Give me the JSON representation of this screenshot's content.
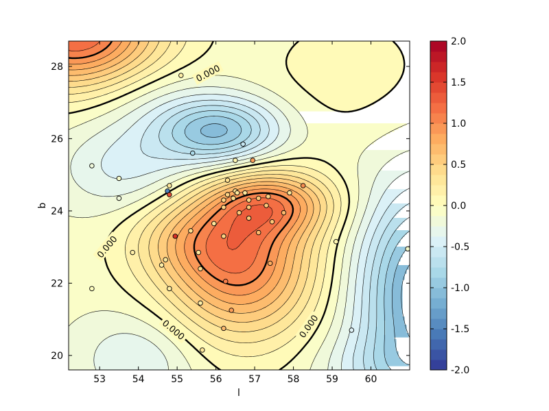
{
  "chart_data": {
    "type": "contour",
    "title": "",
    "xlabel": "l",
    "ylabel": "b",
    "xlim": [
      52.2,
      61.0
    ],
    "ylim": [
      19.6,
      28.7
    ],
    "x_ticks": [
      53,
      54,
      55,
      56,
      57,
      58,
      59,
      60
    ],
    "y_ticks": [
      20,
      22,
      24,
      26,
      28
    ],
    "colorbar": {
      "min": -2.0,
      "max": 2.0,
      "ticks": [
        "-2.0",
        "-1.5",
        "-1.0",
        "-0.5",
        "0.0",
        "0.5",
        "1.0",
        "1.5",
        "2.0"
      ],
      "colormap": "RdYlBu_r"
    },
    "contour_labels": [
      {
        "text": "0.000",
        "l": 55.8,
        "b": 27.8
      },
      {
        "text": "0.000",
        "l": 53.2,
        "b": 23.0
      },
      {
        "text": "0.000",
        "l": 54.9,
        "b": 20.7
      },
      {
        "text": "0.000",
        "l": 58.4,
        "b": 20.8
      }
    ],
    "points": [
      {
        "l": 55.1,
        "b": 27.75,
        "v": 0.2
      },
      {
        "l": 52.8,
        "b": 25.25,
        "v": -0.2
      },
      {
        "l": 53.5,
        "b": 24.9,
        "v": -0.1
      },
      {
        "l": 53.5,
        "b": 24.35,
        "v": -0.2
      },
      {
        "l": 55.4,
        "b": 25.6,
        "v": -0.8
      },
      {
        "l": 56.7,
        "b": 25.85,
        "v": -0.6
      },
      {
        "l": 56.5,
        "b": 25.4,
        "v": 0.1
      },
      {
        "l": 56.95,
        "b": 25.4,
        "v": 0.9
      },
      {
        "l": 54.8,
        "b": 24.7,
        "v": 0.3
      },
      {
        "l": 54.75,
        "b": 24.55,
        "v": -1.5
      },
      {
        "l": 54.8,
        "b": 24.45,
        "v": 1.4
      },
      {
        "l": 56.3,
        "b": 24.85,
        "v": 0.4
      },
      {
        "l": 56.5,
        "b": 24.55,
        "v": 0.4
      },
      {
        "l": 56.55,
        "b": 24.5,
        "v": 0.3
      },
      {
        "l": 56.75,
        "b": 24.5,
        "v": 0.3
      },
      {
        "l": 56.3,
        "b": 24.45,
        "v": 0.5
      },
      {
        "l": 56.45,
        "b": 24.35,
        "v": 0.4
      },
      {
        "l": 56.2,
        "b": 24.3,
        "v": 0.5
      },
      {
        "l": 56.85,
        "b": 24.3,
        "v": 0.5
      },
      {
        "l": 57.1,
        "b": 24.35,
        "v": 0.6
      },
      {
        "l": 57.35,
        "b": 24.4,
        "v": 0.5
      },
      {
        "l": 57.9,
        "b": 24.5,
        "v": 0.3
      },
      {
        "l": 58.25,
        "b": 24.7,
        "v": 1.0
      },
      {
        "l": 56.2,
        "b": 24.1,
        "v": 0.5
      },
      {
        "l": 56.85,
        "b": 24.1,
        "v": 0.6
      },
      {
        "l": 57.3,
        "b": 24.15,
        "v": 0.6
      },
      {
        "l": 56.6,
        "b": 23.95,
        "v": 0.6
      },
      {
        "l": 57.75,
        "b": 23.95,
        "v": 0.7
      },
      {
        "l": 56.85,
        "b": 23.8,
        "v": 0.6
      },
      {
        "l": 57.45,
        "b": 23.7,
        "v": 0.6
      },
      {
        "l": 55.95,
        "b": 23.65,
        "v": 0.3
      },
      {
        "l": 55.35,
        "b": 23.45,
        "v": 0.4
      },
      {
        "l": 57.1,
        "b": 23.4,
        "v": 0.7
      },
      {
        "l": 54.95,
        "b": 23.3,
        "v": 1.6
      },
      {
        "l": 56.2,
        "b": 23.3,
        "v": 0.5
      },
      {
        "l": 59.1,
        "b": 23.15,
        "v": 0.1
      },
      {
        "l": 53.85,
        "b": 22.85,
        "v": 0.2
      },
      {
        "l": 55.55,
        "b": 22.85,
        "v": 0.3
      },
      {
        "l": 54.7,
        "b": 22.65,
        "v": 0.3
      },
      {
        "l": 54.6,
        "b": 22.5,
        "v": 0.2
      },
      {
        "l": 57.4,
        "b": 22.55,
        "v": 0.8
      },
      {
        "l": 55.6,
        "b": 22.4,
        "v": 0.4
      },
      {
        "l": 56.25,
        "b": 22.05,
        "v": 1.1
      },
      {
        "l": 52.8,
        "b": 21.85,
        "v": 0.0
      },
      {
        "l": 54.8,
        "b": 21.85,
        "v": 0.2
      },
      {
        "l": 55.6,
        "b": 21.45,
        "v": 0.2
      },
      {
        "l": 56.4,
        "b": 21.25,
        "v": 0.9
      },
      {
        "l": 56.2,
        "b": 20.75,
        "v": 0.7
      },
      {
        "l": 59.5,
        "b": 20.7,
        "v": -0.4
      },
      {
        "l": 55.65,
        "b": 20.15,
        "v": 0.3
      },
      {
        "l": 60.95,
        "b": 22.95,
        "v": -0.1
      }
    ]
  }
}
